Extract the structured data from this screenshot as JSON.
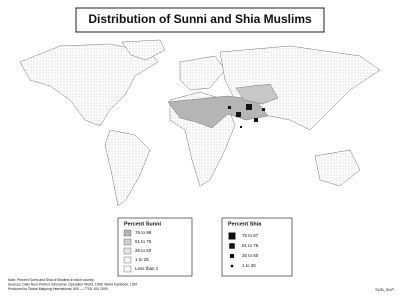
{
  "header": {
    "title": "Distribution of Sunni and Shia Muslims"
  },
  "legend_sunni": {
    "title": "Percent Sunni",
    "items": [
      "76 to 99",
      "51 to 75",
      "26 to 50",
      "1 to 25",
      "Less than 1"
    ]
  },
  "legend_shia": {
    "title": "Percent Shia",
    "items": [
      "76 to 87",
      "51 to 75",
      "26 to 50",
      "1 to 25"
    ]
  },
  "notes": [
    "Note: Percent Sunni and Shia of Muslims in each country.",
    "Sources: Daily Noor Perfect Johnstone: Operation World, 1993; World Factbook, 1997",
    "Produced by Global Mapping International, 800 — 7718, 531 2000"
  ],
  "code": "SUN_SUP"
}
